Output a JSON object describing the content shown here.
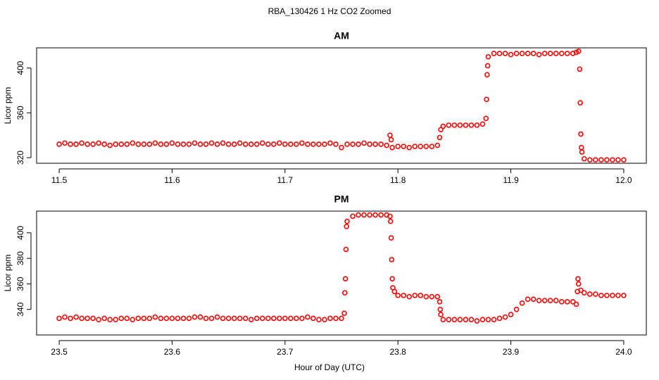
{
  "title": "RBA_130426  1 Hz CO2 Zoomed",
  "xlabel": "Hour of Day (UTC)",
  "chart_data": [
    {
      "type": "scatter",
      "title": "AM",
      "ylabel": "Licor ppm",
      "color": "#ff0000",
      "xlim": [
        11.48,
        12.02
      ],
      "ylim": [
        315,
        418
      ],
      "xticks": [
        11.5,
        11.6,
        11.7,
        11.8,
        11.9,
        {
          "value": 12,
          "label": "12.0"
        }
      ],
      "yticks": [
        320,
        360,
        400
      ],
      "x": [
        11.5,
        11.505,
        11.51,
        11.515,
        11.52,
        11.525,
        11.53,
        11.535,
        11.54,
        11.545,
        11.55,
        11.555,
        11.56,
        11.565,
        11.57,
        11.575,
        11.58,
        11.585,
        11.59,
        11.595,
        11.6,
        11.605,
        11.61,
        11.615,
        11.62,
        11.625,
        11.63,
        11.635,
        11.64,
        11.645,
        11.65,
        11.655,
        11.66,
        11.665,
        11.67,
        11.675,
        11.68,
        11.685,
        11.69,
        11.695,
        11.7,
        11.705,
        11.71,
        11.715,
        11.72,
        11.725,
        11.73,
        11.735,
        11.74,
        11.745,
        11.75,
        11.755,
        11.76,
        11.765,
        11.77,
        11.775,
        11.78,
        11.785,
        11.79,
        11.793,
        11.794,
        11.795,
        11.8,
        11.805,
        11.81,
        11.815,
        11.82,
        11.825,
        11.83,
        11.835,
        11.837,
        11.838,
        11.84,
        11.845,
        11.85,
        11.855,
        11.86,
        11.865,
        11.87,
        11.875,
        11.878,
        11.8785,
        11.879,
        11.8795,
        11.88,
        11.885,
        11.89,
        11.895,
        11.9,
        11.905,
        11.91,
        11.915,
        11.92,
        11.925,
        11.93,
        11.935,
        11.94,
        11.945,
        11.95,
        11.955,
        11.958,
        11.96,
        11.961,
        11.9615,
        11.962,
        11.9625,
        11.963,
        11.965,
        11.97,
        11.975,
        11.98,
        11.985,
        11.99,
        11.995,
        12.0
      ],
      "y": [
        332,
        333,
        332,
        332,
        333,
        332,
        332,
        333,
        332,
        331,
        332,
        332,
        332,
        333,
        332,
        332,
        332,
        333,
        332,
        332,
        333,
        332,
        332,
        332,
        333,
        332,
        332,
        333,
        332,
        333,
        332,
        332,
        333,
        332,
        332,
        332,
        333,
        332,
        332,
        333,
        332,
        332,
        332,
        333,
        332,
        332,
        332,
        332,
        333,
        332,
        329,
        332,
        332,
        332,
        333,
        332,
        332,
        332,
        331,
        340,
        336,
        329,
        330,
        330,
        329,
        330,
        330,
        330,
        330,
        331,
        338,
        345,
        348,
        349,
        349,
        349,
        349,
        349,
        349,
        350,
        355,
        372,
        394,
        402,
        410,
        413,
        413,
        413,
        412,
        413,
        413,
        413,
        413,
        412,
        413,
        413,
        413,
        413,
        413,
        413,
        414,
        415,
        399,
        369,
        341,
        329,
        325,
        319,
        318,
        318,
        318,
        318,
        318,
        318,
        318
      ]
    },
    {
      "type": "scatter",
      "title": "PM",
      "ylabel": "Licor ppm",
      "color": "#ff0000",
      "xlim": [
        23.48,
        24.02
      ],
      "ylim": [
        320,
        417
      ],
      "xticks": [
        23.5,
        23.6,
        23.7,
        23.8,
        23.9,
        {
          "value": 24,
          "label": "24.0"
        }
      ],
      "yticks": [
        340,
        360,
        380,
        400
      ],
      "x": [
        23.5,
        23.505,
        23.51,
        23.515,
        23.52,
        23.525,
        23.53,
        23.535,
        23.54,
        23.545,
        23.55,
        23.555,
        23.56,
        23.565,
        23.57,
        23.575,
        23.58,
        23.585,
        23.59,
        23.595,
        23.6,
        23.605,
        23.61,
        23.615,
        23.62,
        23.625,
        23.63,
        23.635,
        23.64,
        23.645,
        23.65,
        23.655,
        23.66,
        23.665,
        23.67,
        23.675,
        23.68,
        23.685,
        23.69,
        23.695,
        23.7,
        23.705,
        23.71,
        23.715,
        23.72,
        23.725,
        23.73,
        23.735,
        23.74,
        23.745,
        23.75,
        23.7525,
        23.753,
        23.7535,
        23.754,
        23.7545,
        23.755,
        23.76,
        23.765,
        23.77,
        23.775,
        23.78,
        23.785,
        23.79,
        23.793,
        23.7935,
        23.794,
        23.7945,
        23.795,
        23.7955,
        23.797,
        23.8,
        23.805,
        23.81,
        23.815,
        23.82,
        23.825,
        23.83,
        23.835,
        23.837,
        23.8375,
        23.838,
        23.84,
        23.845,
        23.85,
        23.855,
        23.86,
        23.865,
        23.87,
        23.875,
        23.88,
        23.885,
        23.89,
        23.895,
        23.9,
        23.905,
        23.91,
        23.915,
        23.92,
        23.925,
        23.93,
        23.935,
        23.94,
        23.945,
        23.95,
        23.955,
        23.958,
        23.959,
        23.9595,
        23.96,
        23.962,
        23.965,
        23.97,
        23.975,
        23.98,
        23.985,
        23.99,
        23.995,
        24.0
      ],
      "y": [
        333,
        334,
        333,
        334,
        333,
        333,
        333,
        332,
        333,
        332,
        332,
        333,
        333,
        332,
        333,
        333,
        333,
        334,
        333,
        333,
        333,
        333,
        333,
        333,
        334,
        334,
        333,
        333,
        334,
        333,
        333,
        333,
        333,
        333,
        332,
        333,
        333,
        333,
        333,
        333,
        333,
        333,
        333,
        333,
        334,
        333,
        332,
        332,
        333,
        333,
        333,
        337,
        353,
        364,
        387,
        405,
        409,
        413,
        414,
        414,
        414,
        414,
        414,
        414,
        413,
        409,
        396,
        379,
        364,
        357,
        354,
        351,
        351,
        350,
        351,
        351,
        350,
        350,
        350,
        346,
        340,
        336,
        332,
        332,
        332,
        332,
        332,
        332,
        331,
        332,
        332,
        332,
        333,
        334,
        336,
        340,
        345,
        348,
        348,
        347,
        347,
        347,
        347,
        346,
        346,
        346,
        344,
        354,
        364,
        360,
        355,
        353,
        352,
        352,
        351,
        351,
        351,
        351,
        351
      ]
    }
  ]
}
